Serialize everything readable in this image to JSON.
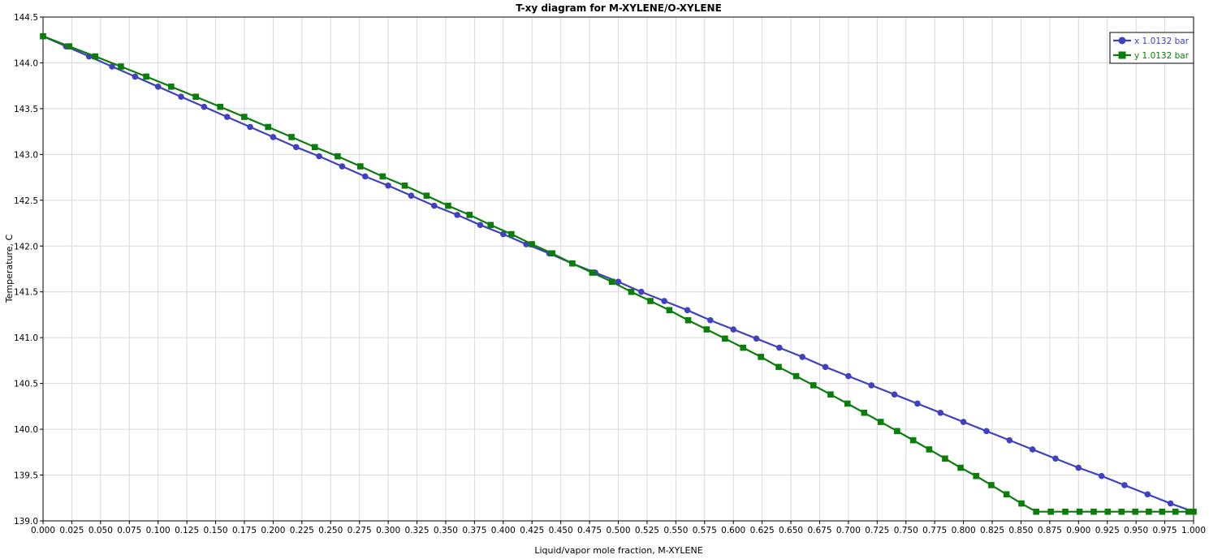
{
  "chart_data": {
    "type": "line",
    "title": "T-xy diagram for M-XYLENE/O-XYLENE",
    "xlabel": "Liquid/vapor mole fraction, M-XYLENE",
    "ylabel": "Temperature, C",
    "xlim": [
      0,
      1
    ],
    "ylim": [
      139.0,
      144.5
    ],
    "x_ticks": [
      "0.000",
      "0.025",
      "0.050",
      "0.075",
      "0.100",
      "0.125",
      "0.150",
      "0.175",
      "0.200",
      "0.225",
      "0.250",
      "0.275",
      "0.300",
      "0.325",
      "0.350",
      "0.375",
      "0.400",
      "0.425",
      "0.450",
      "0.475",
      "0.500",
      "0.525",
      "0.550",
      "0.575",
      "0.600",
      "0.625",
      "0.650",
      "0.675",
      "0.700",
      "0.725",
      "0.750",
      "0.775",
      "0.800",
      "0.825",
      "0.850",
      "0.875",
      "0.900",
      "0.925",
      "0.950",
      "0.975",
      "1.000"
    ],
    "y_ticks": [
      "139.0",
      "139.5",
      "140.0",
      "140.5",
      "141.0",
      "141.5",
      "142.0",
      "142.5",
      "143.0",
      "143.5",
      "144.0",
      "144.5"
    ],
    "grid": true,
    "legend_position": "top-right",
    "series": [
      {
        "name": "x  1.0132 bar",
        "color": "#4040c0",
        "marker": "circle",
        "x": [
          0.0,
          0.02,
          0.04,
          0.06,
          0.08,
          0.1,
          0.12,
          0.14,
          0.16,
          0.18,
          0.2,
          0.22,
          0.24,
          0.26,
          0.28,
          0.3,
          0.32,
          0.34,
          0.36,
          0.38,
          0.4,
          0.42,
          0.44,
          0.46,
          0.48,
          0.5,
          0.52,
          0.54,
          0.56,
          0.58,
          0.6,
          0.62,
          0.64,
          0.66,
          0.68,
          0.7,
          0.72,
          0.74,
          0.76,
          0.78,
          0.8,
          0.82,
          0.84,
          0.86,
          0.88,
          0.9,
          0.92,
          0.94,
          0.96,
          0.98,
          1.0
        ],
        "y": [
          144.29,
          144.18,
          144.07,
          143.96,
          143.85,
          143.74,
          143.63,
          143.52,
          143.41,
          143.3,
          143.19,
          143.08,
          142.98,
          142.87,
          142.76,
          142.66,
          142.55,
          142.44,
          142.34,
          142.23,
          142.13,
          142.02,
          141.92,
          141.81,
          141.71,
          141.61,
          141.5,
          141.4,
          141.3,
          141.19,
          141.09,
          140.99,
          140.89,
          140.79,
          140.68,
          140.58,
          140.48,
          140.38,
          140.28,
          140.18,
          140.08,
          139.98,
          139.88,
          139.78,
          139.68,
          139.58,
          139.49,
          139.39,
          139.29,
          139.19,
          139.1
        ]
      },
      {
        "name": "y  1.0132 bar",
        "color": "#0a7d0a",
        "marker": "square",
        "x": [
          0.0,
          0.0228,
          0.0454,
          0.0677,
          0.0897,
          0.1114,
          0.1328,
          0.154,
          0.1749,
          0.1956,
          0.216,
          0.2362,
          0.2561,
          0.2758,
          0.2952,
          0.3144,
          0.3334,
          0.3521,
          0.3707,
          0.389,
          0.4071,
          0.4249,
          0.4426,
          0.4601,
          0.4773,
          0.4944,
          0.5113,
          0.5279,
          0.5444,
          0.5607,
          0.5768,
          0.5927,
          0.6085,
          0.624,
          0.6394,
          0.6546,
          0.6696,
          0.6845,
          0.6992,
          0.7137,
          0.7281,
          0.7423,
          0.7563,
          0.7702,
          0.784,
          0.7975,
          0.811,
          0.8242,
          0.8374,
          0.8504,
          0.8632,
          0.8759,
          0.8885,
          0.9009,
          0.9132,
          0.9254,
          0.9374,
          0.9493,
          0.9611,
          0.9727,
          0.9843,
          0.9956,
          1.0
        ],
        "y": [
          144.29,
          144.18,
          144.07,
          143.96,
          143.85,
          143.74,
          143.63,
          143.52,
          143.41,
          143.3,
          143.19,
          143.08,
          142.98,
          142.87,
          142.76,
          142.66,
          142.55,
          142.44,
          142.34,
          142.23,
          142.13,
          142.02,
          141.92,
          141.81,
          141.71,
          141.61,
          141.5,
          141.4,
          141.3,
          141.19,
          141.09,
          140.99,
          140.89,
          140.79,
          140.68,
          140.58,
          140.48,
          140.38,
          140.28,
          140.18,
          140.08,
          139.98,
          139.88,
          139.78,
          139.68,
          139.58,
          139.49,
          139.39,
          139.29,
          139.19,
          139.1,
          139.1,
          139.1,
          139.1,
          139.1,
          139.1,
          139.1,
          139.1,
          139.1,
          139.1,
          139.1,
          139.1,
          139.1
        ]
      }
    ]
  }
}
